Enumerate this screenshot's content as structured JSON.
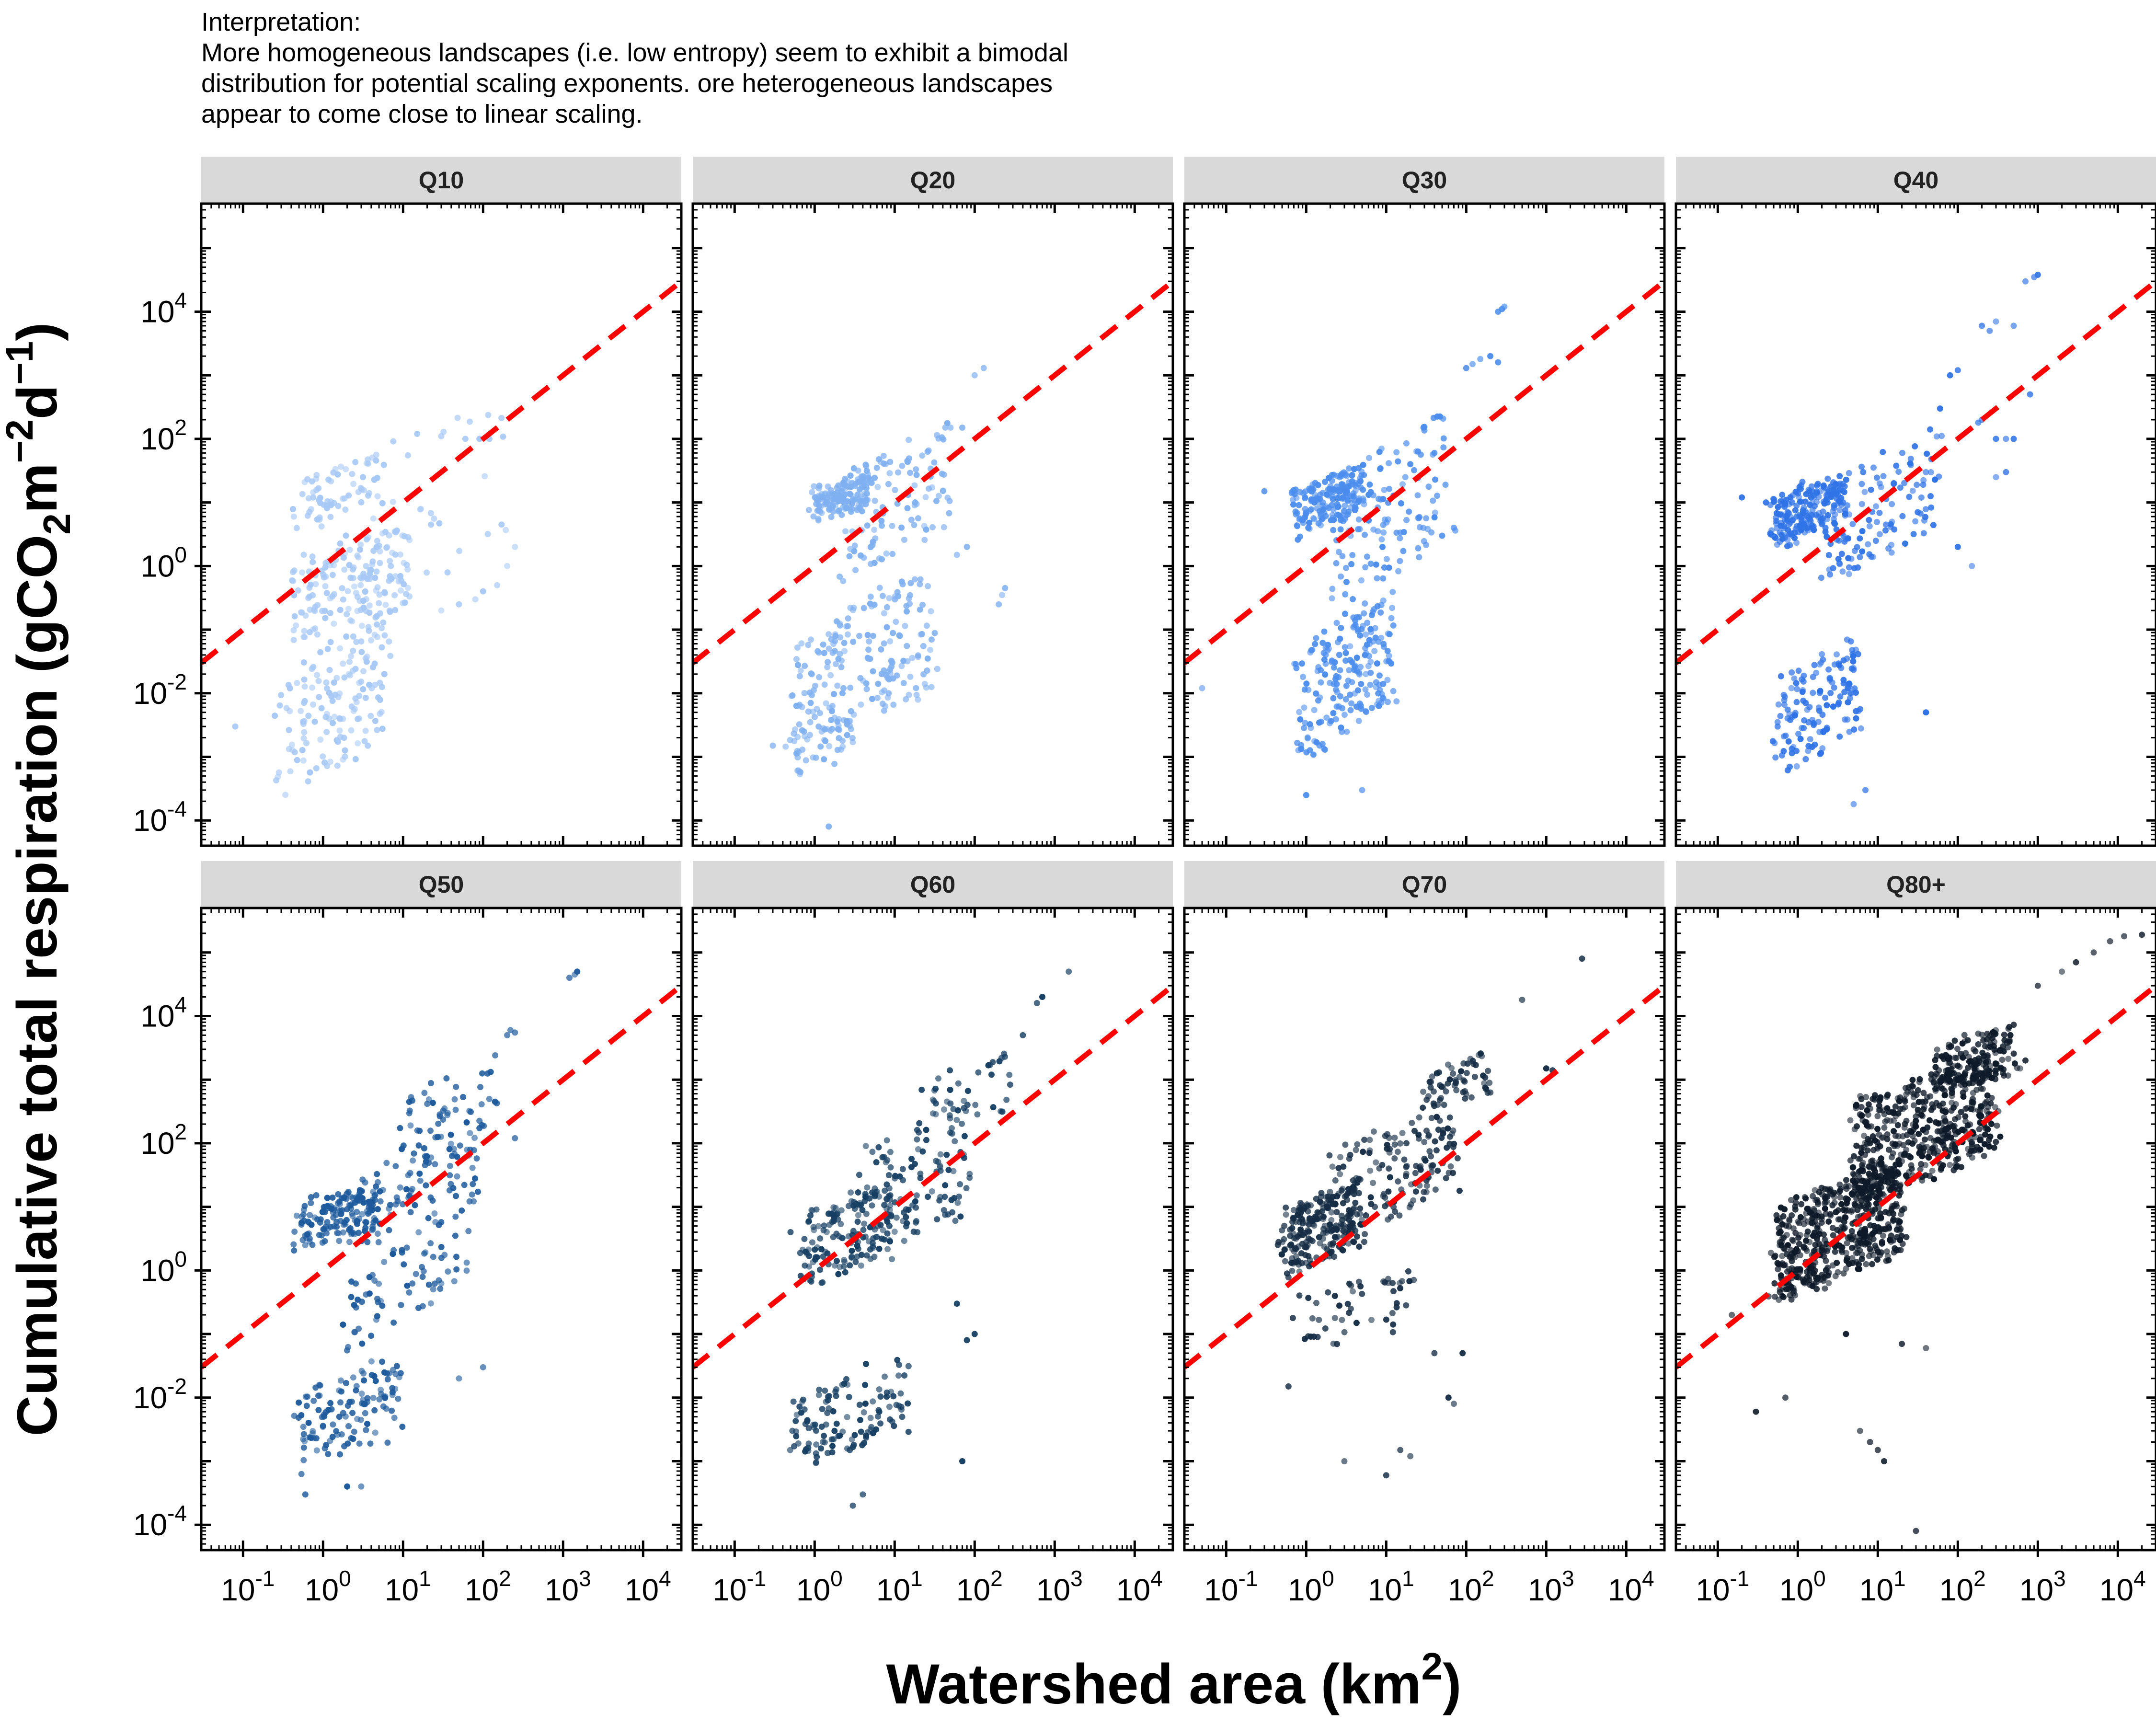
{
  "interpretation": {
    "heading": "Interpretation:",
    "lines": [
      "More homogeneous landscapes (i.e. low entropy) seem to exhibit a bimodal",
      "distribution for potential scaling exponents. ore heterogeneous landscapes",
      "appear to come close to linear scaling."
    ]
  },
  "colors": {
    "strip_bg": "#d9d9d9",
    "reference_line": "#ff0000",
    "Q10": "#a6c8f5",
    "Q20": "#7fb0f0",
    "Q30": "#4b8ded",
    "Q40": "#2f73e6",
    "Q50": "#1d5a9c",
    "Q60": "#163f63",
    "Q70": "#152d45",
    "Q80+": "#0e1a29"
  },
  "chart_data": {
    "type": "scatter",
    "layout": "facet 2x4",
    "xlabel": {
      "main": "Watershed area (km",
      "sup": "2",
      "tail": ")"
    },
    "ylabel": {
      "pre": "Cumulative total respiration (gCO",
      "sub": "2",
      "mid": "m",
      "sup1": "−2",
      "mid2": "d",
      "sup2": "−1",
      "tail": ")"
    },
    "x_scale": "log10",
    "y_scale": "log10",
    "xlim": [
      0.03,
      30000
    ],
    "ylim": [
      4e-05,
      500000
    ],
    "x_ticks": [
      {
        "base": "10",
        "exp": "-1",
        "value": 0.1
      },
      {
        "base": "10",
        "exp": "0",
        "value": 1
      },
      {
        "base": "10",
        "exp": "1",
        "value": 10
      },
      {
        "base": "10",
        "exp": "2",
        "value": 100
      },
      {
        "base": "10",
        "exp": "3",
        "value": 1000
      },
      {
        "base": "10",
        "exp": "4",
        "value": 10000
      }
    ],
    "y_ticks": [
      {
        "base": "10",
        "exp": "-4",
        "value": 0.0001
      },
      {
        "base": "10",
        "exp": "-2",
        "value": 0.01
      },
      {
        "base": "10",
        "exp": "0",
        "value": 1
      },
      {
        "base": "10",
        "exp": "2",
        "value": 100
      },
      {
        "base": "10",
        "exp": "4",
        "value": 10000
      }
    ],
    "reference_line": {
      "style": "dashed",
      "color": "red",
      "slope": 1,
      "intercept": 1,
      "description": "y = x (linear scaling)"
    },
    "facets": [
      {
        "title": "Q10",
        "clusters": [
          {
            "n": 150,
            "x": [
              0.3,
              6.0
            ],
            "y": [
              0.0002,
              0.2
            ]
          },
          {
            "n": 150,
            "x": [
              0.4,
              12.0
            ],
            "y": [
              0.05,
              5.0
            ]
          },
          {
            "n": 60,
            "x": [
              0.4,
              5.0
            ],
            "y": [
              4.0,
              60.0
            ]
          },
          {
            "n": 50,
            "x": [
              0.5,
              200.0
            ],
            "y": [
              0.05,
              500.0
            ]
          }
        ],
        "points": [
          [
            0.08,
            0.003
          ],
          [
            15,
            120
          ],
          [
            30,
            110
          ],
          [
            60,
            100
          ],
          [
            90,
            100
          ],
          [
            120,
            100
          ],
          [
            100,
            0.4
          ],
          [
            150,
            0.5
          ],
          [
            200,
            1.0
          ],
          [
            250,
            2.0
          ],
          [
            80,
            0.3
          ],
          [
            50,
            0.25
          ],
          [
            30,
            0.2
          ]
        ]
      },
      {
        "title": "Q20",
        "clusters": [
          {
            "n": 150,
            "x": [
              1.0,
              5.0
            ],
            "y": [
              5.0,
              30.0
            ]
          },
          {
            "n": 200,
            "x": [
              0.5,
              30.0
            ],
            "y": [
              0.001,
              1.0
            ]
          },
          {
            "n": 100,
            "x": [
              2.0,
              50.0
            ],
            "y": [
              0.5,
              200.0
            ]
          },
          {
            "n": 40,
            "x": [
              0.5,
              3.0
            ],
            "y": [
              0.0005,
              0.005
            ]
          }
        ],
        "points": [
          [
            0.3,
            0.0015
          ],
          [
            1.5,
            8e-05
          ],
          [
            100,
            1000
          ],
          [
            130,
            1300
          ],
          [
            70,
            150
          ],
          [
            50,
            150
          ],
          [
            200,
            0.25
          ],
          [
            220,
            0.35
          ],
          [
            240,
            0.45
          ],
          [
            60,
            1.5
          ],
          [
            80,
            2.0
          ]
        ]
      },
      {
        "title": "Q30",
        "clusters": [
          {
            "n": 180,
            "x": [
              0.7,
              6.0
            ],
            "y": [
              3.0,
              40.0
            ]
          },
          {
            "n": 200,
            "x": [
              0.8,
              12.0
            ],
            "y": [
              0.0008,
              0.5
            ]
          },
          {
            "n": 120,
            "x": [
              2.0,
              60.0
            ],
            "y": [
              0.2,
              300.0
            ]
          }
        ],
        "points": [
          [
            0.05,
            0.012
          ],
          [
            0.3,
            15
          ],
          [
            1,
            0.00025
          ],
          [
            5,
            0.0003
          ],
          [
            100,
            1300
          ],
          [
            120,
            1500
          ],
          [
            150,
            1800
          ],
          [
            200,
            2000
          ],
          [
            250,
            1600
          ],
          [
            250,
            10000
          ],
          [
            300,
            12000
          ],
          [
            280,
            11000
          ],
          [
            50,
            3
          ],
          [
            70,
            4
          ],
          [
            20,
            40
          ],
          [
            40,
            60
          ]
        ]
      },
      {
        "title": "Q40",
        "clusters": [
          {
            "n": 200,
            "x": [
              0.5,
              4.0
            ],
            "y": [
              2.0,
              30.0
            ]
          },
          {
            "n": 140,
            "x": [
              0.5,
              6.0
            ],
            "y": [
              0.0004,
              0.1
            ]
          },
          {
            "n": 120,
            "x": [
              2.0,
              60.0
            ],
            "y": [
              0.5,
              150.0
            ]
          }
        ],
        "points": [
          [
            0.2,
            12
          ],
          [
            0.4,
            10
          ],
          [
            5,
            0.00018
          ],
          [
            7,
            0.0003
          ],
          [
            80,
            1000
          ],
          [
            100,
            1200
          ],
          [
            60,
            300
          ],
          [
            200,
            6000
          ],
          [
            250,
            5000
          ],
          [
            300,
            7000
          ],
          [
            500,
            6000
          ],
          [
            700,
            30000
          ],
          [
            900,
            35000
          ],
          [
            1000,
            38000
          ],
          [
            300,
            100
          ],
          [
            400,
            100
          ],
          [
            500,
            100
          ],
          [
            200,
            200
          ],
          [
            180,
            180
          ],
          [
            150,
            1
          ],
          [
            100,
            2
          ],
          [
            300,
            25
          ],
          [
            400,
            30
          ],
          [
            800,
            500
          ],
          [
            40,
            0.005
          ]
        ]
      },
      {
        "title": "Q50",
        "clusters": [
          {
            "n": 150,
            "x": [
              0.5,
              5.0
            ],
            "y": [
              2.0,
              30.0
            ]
          },
          {
            "n": 120,
            "x": [
              0.5,
              10.0
            ],
            "y": [
              0.0006,
              0.05
            ]
          },
          {
            "n": 150,
            "x": [
              2.0,
              80.0
            ],
            "y": [
              0.05,
              300.0
            ]
          },
          {
            "n": 60,
            "x": [
              10.0,
              150.0
            ],
            "y": [
              30.0,
              3000.0
            ]
          }
        ],
        "points": [
          [
            0.6,
            0.0003
          ],
          [
            2,
            0.0004
          ],
          [
            3,
            0.0004
          ],
          [
            200,
            5000
          ],
          [
            250,
            5500
          ],
          [
            220,
            6000
          ],
          [
            1200,
            40000
          ],
          [
            1400,
            45000
          ],
          [
            1500,
            50000
          ],
          [
            250,
            120
          ],
          [
            100,
            0.03
          ],
          [
            50,
            0.02
          ]
        ]
      },
      {
        "title": "Q60",
        "clusters": [
          {
            "n": 140,
            "x": [
              0.7,
              10.0
            ],
            "y": [
              0.5,
              30.0
            ]
          },
          {
            "n": 120,
            "x": [
              0.5,
              15.0
            ],
            "y": [
              0.0006,
              0.05
            ]
          },
          {
            "n": 120,
            "x": [
              3.0,
              80.0
            ],
            "y": [
              1.0,
              500.0
            ]
          },
          {
            "n": 40,
            "x": [
              20.0,
              300.0
            ],
            "y": [
              100.0,
              3000.0
            ]
          }
        ],
        "points": [
          [
            0.5,
            4
          ],
          [
            3,
            0.0002
          ],
          [
            4,
            0.0003
          ],
          [
            1500,
            50000
          ],
          [
            600,
            16000
          ],
          [
            700,
            20000
          ],
          [
            400,
            5000
          ],
          [
            80,
            0.08
          ],
          [
            100,
            0.1
          ],
          [
            70,
            0.001
          ],
          [
            60,
            0.3
          ]
        ]
      },
      {
        "title": "Q70",
        "clusters": [
          {
            "n": 220,
            "x": [
              0.5,
              5.0
            ],
            "y": [
              0.8,
              30.0
            ]
          },
          {
            "n": 150,
            "x": [
              2.0,
              80.0
            ],
            "y": [
              3.0,
              400.0
            ]
          },
          {
            "n": 60,
            "x": [
              30.0,
              200.0
            ],
            "y": [
              300.0,
              3000.0
            ]
          },
          {
            "n": 50,
            "x": [
              0.8,
              20.0
            ],
            "y": [
              0.05,
              1.0
            ]
          }
        ],
        "points": [
          [
            0.6,
            0.015
          ],
          [
            10,
            0.0006
          ],
          [
            3,
            0.001
          ],
          [
            15,
            0.0015
          ],
          [
            20,
            0.0012
          ],
          [
            60,
            0.01
          ],
          [
            70,
            0.008
          ],
          [
            90,
            0.05
          ],
          [
            40,
            0.05
          ],
          [
            2800,
            80000
          ],
          [
            500,
            18000
          ],
          [
            1000,
            1500
          ],
          [
            1200,
            1400
          ]
        ]
      },
      {
        "title": "Q80+",
        "clusters": [
          {
            "n": 500,
            "x": [
              0.5,
              20.0
            ],
            "y": [
              0.3,
              60.0
            ]
          },
          {
            "n": 500,
            "x": [
              5.0,
              300.0
            ],
            "y": [
              10.0,
              3000.0
            ]
          },
          {
            "n": 150,
            "x": [
              50.0,
              500.0
            ],
            "y": [
              500.0,
              8000.0
            ]
          }
        ],
        "points": [
          [
            0.3,
            0.006
          ],
          [
            0.7,
            0.01
          ],
          [
            0.15,
            0.2
          ],
          [
            4,
            0.1
          ],
          [
            8,
            0.002
          ],
          [
            10,
            0.0015
          ],
          [
            12,
            0.001
          ],
          [
            6,
            0.003
          ],
          [
            30,
            8e-05
          ],
          [
            1000,
            30000
          ],
          [
            2000,
            50000
          ],
          [
            5000,
            100000
          ],
          [
            8000,
            150000
          ],
          [
            12000,
            180000
          ],
          [
            20000,
            190000
          ],
          [
            3000,
            70000
          ],
          [
            700,
            2000
          ],
          [
            600,
            1500
          ],
          [
            20,
            0.07
          ],
          [
            40,
            0.06
          ]
        ]
      }
    ]
  }
}
